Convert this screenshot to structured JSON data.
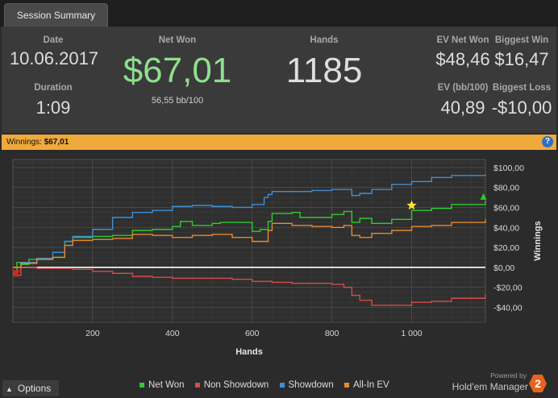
{
  "tab": {
    "label": "Session Summary"
  },
  "summary": {
    "date_label": "Date",
    "date": "10.06.2017",
    "duration_label": "Duration",
    "duration": "1:09",
    "netwon_label": "Net Won",
    "netwon": "$67,01",
    "bb100": "56,55 bb/100",
    "hands_label": "Hands",
    "hands": "1185",
    "evnet_label": "EV Net Won",
    "evnet": "$48,46",
    "evbb_label": "EV (bb/100)",
    "evbb": "40,89",
    "bigwin_label": "Biggest Win",
    "bigwin": "$16,47",
    "bigloss_label": "Biggest Loss",
    "bigloss": "-$10,00"
  },
  "banner": {
    "label": "Winnings:",
    "value": "$67,01"
  },
  "footer": {
    "options": "Options",
    "powered_by": "Powered by",
    "brand": "Hold'em Manager",
    "logo_text": "2"
  },
  "colors": {
    "net_won": "#2ecc2e",
    "non_showdown": "#d94a4a",
    "showdown": "#3d8fd6",
    "allin_ev": "#e8892e",
    "netwon_text": "#8ee08e"
  },
  "chart_data": {
    "type": "line",
    "xlabel": "Hands",
    "ylabel": "Winnings",
    "xlim": [
      0,
      1185
    ],
    "ylim": [
      -55,
      108
    ],
    "x_ticks": [
      200,
      400,
      600,
      800,
      1000
    ],
    "x_tick_labels": [
      "200",
      "400",
      "600",
      "800",
      "1 000"
    ],
    "y_ticks": [
      -40,
      -20,
      0,
      20,
      40,
      60,
      80,
      100
    ],
    "y_tick_labels": [
      "-$40,00",
      "-$20,00",
      "$0,00",
      "$20,00",
      "$40,00",
      "$60,00",
      "$80,00",
      "$100,00"
    ],
    "grid": true,
    "legend_position": "bottom",
    "series": [
      {
        "name": "Net Won",
        "color": "#2ecc2e",
        "x": [
          0,
          10,
          20,
          40,
          80,
          100,
          130,
          150,
          200,
          250,
          300,
          350,
          400,
          420,
          450,
          500,
          520,
          600,
          620,
          640,
          650,
          700,
          720,
          800,
          830,
          850,
          870,
          900,
          950,
          1000,
          1050,
          1100,
          1185
        ],
        "y": [
          -6,
          5,
          3,
          8,
          8,
          10,
          26,
          30,
          31,
          32,
          37,
          38,
          41,
          46,
          42,
          44,
          45,
          36,
          38,
          46,
          54,
          55,
          50,
          53,
          56,
          45,
          49,
          44,
          48,
          57,
          59,
          63,
          67
        ]
      },
      {
        "name": "Non Showdown",
        "color": "#d94a4a",
        "x": [
          0,
          20,
          60,
          100,
          150,
          200,
          250,
          300,
          350,
          400,
          450,
          500,
          550,
          600,
          650,
          700,
          750,
          800,
          830,
          850,
          870,
          900,
          950,
          1000,
          1050,
          1100,
          1185
        ],
        "y": [
          -8,
          0,
          -1,
          -1,
          -2,
          -4,
          -6,
          -9,
          -10,
          -11,
          -11,
          -11,
          -12,
          -14,
          -15,
          -16,
          -16,
          -17,
          -20,
          -28,
          -33,
          -38,
          -38,
          -35,
          -34,
          -31,
          -27
        ]
      },
      {
        "name": "Showdown",
        "color": "#3d8fd6",
        "x": [
          0,
          20,
          60,
          100,
          130,
          150,
          200,
          250,
          300,
          350,
          400,
          450,
          500,
          550,
          600,
          630,
          640,
          650,
          700,
          750,
          800,
          850,
          870,
          900,
          950,
          1000,
          1050,
          1100,
          1185
        ],
        "y": [
          0,
          5,
          9,
          15,
          26,
          31,
          38,
          50,
          55,
          57,
          61,
          62,
          61,
          60,
          63,
          70,
          73,
          76,
          76,
          77,
          78,
          72,
          74,
          78,
          83,
          86,
          90,
          92,
          93
        ]
      },
      {
        "name": "All-In EV",
        "color": "#e8892e",
        "x": [
          0,
          20,
          60,
          100,
          130,
          150,
          200,
          250,
          300,
          350,
          400,
          450,
          500,
          550,
          600,
          640,
          650,
          700,
          750,
          800,
          830,
          850,
          870,
          900,
          950,
          1000,
          1050,
          1100,
          1185
        ],
        "y": [
          0,
          4,
          8,
          10,
          22,
          27,
          28,
          29,
          33,
          32,
          30,
          32,
          33,
          30,
          26,
          37,
          44,
          42,
          41,
          40,
          42,
          32,
          30,
          34,
          37,
          41,
          42,
          45,
          48
        ]
      }
    ],
    "markers": [
      {
        "shape": "star",
        "x": 1000,
        "y": 62,
        "color": "#ffe82e"
      },
      {
        "shape": "triangle-down",
        "x": 8,
        "y": -6,
        "color": "#e02020"
      },
      {
        "shape": "triangle-up",
        "x": 1180,
        "y": 71,
        "color": "#2ecc2e"
      }
    ]
  }
}
